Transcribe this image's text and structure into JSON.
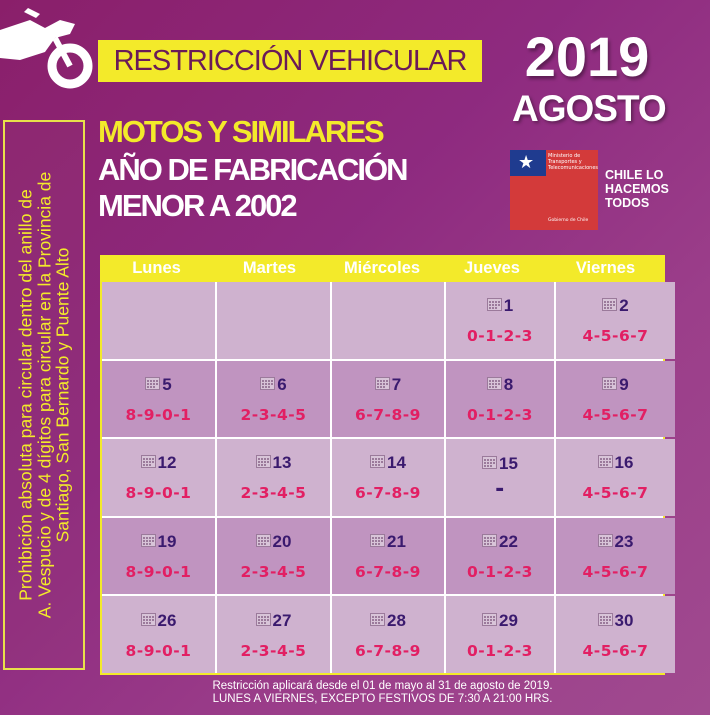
{
  "header": {
    "title": "RESTRICCIÓN VEHICULAR",
    "year": "2019",
    "month": "AGOSTO",
    "subtitle_line1": "MOTOS Y SIMILARES",
    "subtitle_line2": "AÑO DE FABRICACIÓN",
    "subtitle_line3": "MENOR A 2002",
    "icon": "motorcycle-icon"
  },
  "logo": {
    "ministry": "Ministerio de Transportes y Telecomunicaciones",
    "gobierno": "Gobierno de Chile",
    "slogan_line1": "CHILE LO",
    "slogan_line2": "HACEMOS",
    "slogan_line3": "TODOS"
  },
  "side_note": {
    "line1": "Prohibición absoluta para circular dentro del anillo de",
    "line2": "A. Vespucio y de 4 dígitos para circular en la Provincia de",
    "line3": "Santiago, San Bernardo y Puente Alto"
  },
  "calendar": {
    "weekdays": [
      "Lunes",
      "Martes",
      "Miércoles",
      "Jueves",
      "Viernes"
    ],
    "weeks": [
      [
        {
          "day": "",
          "digits": ""
        },
        {
          "day": "",
          "digits": ""
        },
        {
          "day": "",
          "digits": ""
        },
        {
          "day": "1",
          "digits": "0-1-2-3"
        },
        {
          "day": "2",
          "digits": "4-5-6-7"
        }
      ],
      [
        {
          "day": "5",
          "digits": "8-9-0-1"
        },
        {
          "day": "6",
          "digits": "2-3-4-5"
        },
        {
          "day": "7",
          "digits": "6-7-8-9"
        },
        {
          "day": "8",
          "digits": "0-1-2-3"
        },
        {
          "day": "9",
          "digits": "4-5-6-7"
        }
      ],
      [
        {
          "day": "12",
          "digits": "8-9-0-1"
        },
        {
          "day": "13",
          "digits": "2-3-4-5"
        },
        {
          "day": "14",
          "digits": "6-7-8-9"
        },
        {
          "day": "15",
          "digits": "-"
        },
        {
          "day": "16",
          "digits": "4-5-6-7"
        }
      ],
      [
        {
          "day": "19",
          "digits": "8-9-0-1"
        },
        {
          "day": "20",
          "digits": "2-3-4-5"
        },
        {
          "day": "21",
          "digits": "6-7-8-9"
        },
        {
          "day": "22",
          "digits": "0-1-2-3"
        },
        {
          "day": "23",
          "digits": "4-5-6-7"
        }
      ],
      [
        {
          "day": "26",
          "digits": "8-9-0-1"
        },
        {
          "day": "27",
          "digits": "2-3-4-5"
        },
        {
          "day": "28",
          "digits": "6-7-8-9"
        },
        {
          "day": "29",
          "digits": "0-1-2-3"
        },
        {
          "day": "30",
          "digits": "4-5-6-7"
        }
      ]
    ]
  },
  "footer": {
    "line1": "Restricción aplicará desde el 01 de mayo al 31 de agosto de 2019.",
    "line2": "LUNES A VIERNES, EXCEPTO FESTIVOS DE 7:30 A 21:00 HRS."
  },
  "colors": {
    "background": "#8e2a7f",
    "accent_yellow": "#f3ea2a",
    "digits_pink": "#e21f63",
    "day_navy": "#3a1a6e"
  }
}
